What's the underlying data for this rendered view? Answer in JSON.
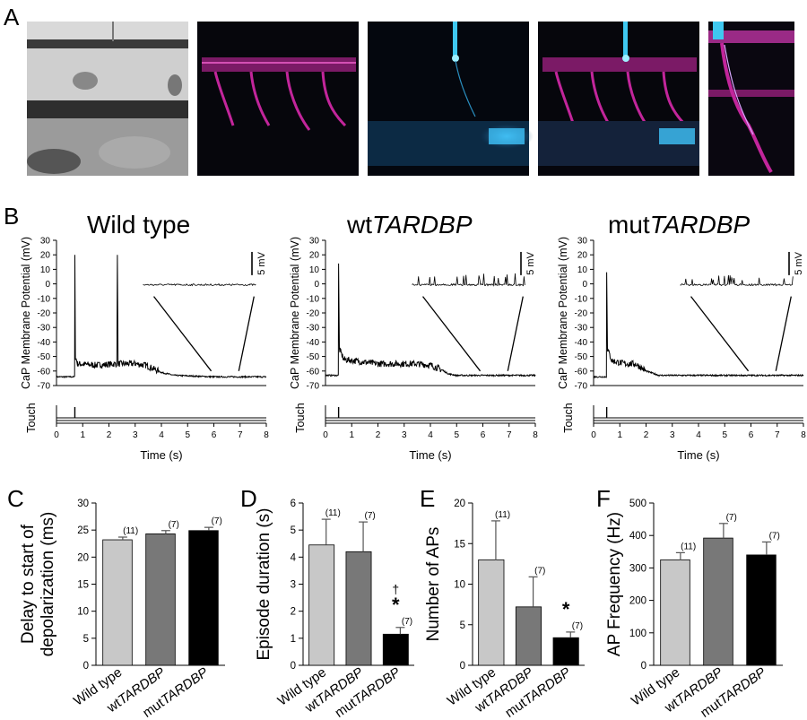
{
  "panel_letters": [
    "A",
    "B",
    "C",
    "D",
    "E",
    "F"
  ],
  "panel_a": {
    "images": [
      {
        "kind": "brightfield"
      },
      {
        "kind": "magenta-vessels"
      },
      {
        "kind": "cyan-neuron"
      },
      {
        "kind": "merge"
      },
      {
        "kind": "merge-zoom"
      }
    ],
    "colors": {
      "magenta": "#c2259b",
      "cyan": "#29b6e6",
      "dark": "#06060c"
    }
  },
  "panel_b": {
    "ylabel_trace": "CaP Membrane Potential (mV)",
    "ylabel_touch": "Touch",
    "xlabel": "Time (s)",
    "scale_bar_label": "5 mV",
    "y_ticks": [
      "30",
      "20",
      "10",
      "0",
      "-10",
      "-20",
      "-30",
      "-40",
      "-50",
      "-60",
      "-70"
    ],
    "x_ticks": [
      "0",
      "1",
      "2",
      "3",
      "4",
      "5",
      "6",
      "7",
      "8"
    ],
    "titles": [
      {
        "plain": "Wild type",
        "italic": ""
      },
      {
        "plain": "wt",
        "italic": "TARDBP"
      },
      {
        "plain": "mut",
        "italic": "TARDBP"
      }
    ]
  },
  "chart_data": [
    {
      "type": "line",
      "panel": "B",
      "title": "Wild type",
      "xlabel": "Time (s)",
      "ylabel": "CaP Membrane Potential (mV)",
      "xlim": [
        0,
        8
      ],
      "ylim": [
        -70,
        30
      ],
      "series": [
        {
          "x": [
            0,
            0.69,
            0.7,
            0.72,
            0.8,
            1.5,
            2.3,
            2.32,
            2.35,
            3.0,
            3.4,
            4.0,
            4.5,
            6.0,
            8.0
          ],
          "y": [
            -64,
            -64,
            20,
            -50,
            -55,
            -56,
            -55,
            20,
            -55,
            -55,
            -56,
            -61,
            -63,
            -64,
            -64
          ]
        }
      ],
      "touch_time": 0.7
    },
    {
      "type": "line",
      "panel": "B",
      "title": "wtTARDBP",
      "xlabel": "Time (s)",
      "ylabel": "CaP Membrane Potential (mV)",
      "xlim": [
        0,
        8
      ],
      "ylim": [
        -70,
        30
      ],
      "series": [
        {
          "x": [
            0,
            0.49,
            0.5,
            0.53,
            0.7,
            2.0,
            3.5,
            4.0,
            4.3,
            4.7,
            5.0,
            6.0,
            8.0
          ],
          "y": [
            -63,
            -63,
            14,
            -45,
            -52,
            -55,
            -55,
            -56,
            -58,
            -62,
            -63,
            -63,
            -63
          ]
        }
      ],
      "touch_time": 0.5
    },
    {
      "type": "line",
      "panel": "B",
      "title": "mutTARDBP",
      "xlabel": "Time (s)",
      "ylabel": "CaP Membrane Potential (mV)",
      "xlim": [
        0,
        8
      ],
      "ylim": [
        -70,
        30
      ],
      "series": [
        {
          "x": [
            0,
            0.49,
            0.5,
            0.53,
            0.7,
            1.2,
            1.6,
            2.0,
            2.5,
            4.0,
            8.0
          ],
          "y": [
            -64,
            -64,
            8,
            -45,
            -53,
            -55,
            -55,
            -60,
            -63,
            -63,
            -63
          ]
        }
      ],
      "touch_time": 0.5
    },
    {
      "type": "bar",
      "panel": "C",
      "ylabel": "Delay to start of depolarization (ms)",
      "categories": [
        "Wild type",
        "wtTARDBP",
        "mutTARDBP"
      ],
      "values": [
        23.2,
        24.3,
        24.9
      ],
      "errors": [
        0.5,
        0.6,
        0.6
      ],
      "n_labels": [
        "(11)",
        "(7)",
        "(7)"
      ],
      "ylim": [
        0,
        30
      ],
      "yticks": [
        "0",
        "5",
        "10",
        "15",
        "20",
        "25",
        "30"
      ],
      "sig": [
        "",
        "",
        ""
      ]
    },
    {
      "type": "bar",
      "panel": "D",
      "ylabel": "Episode duration (s)",
      "categories": [
        "Wild type",
        "wtTARDBP",
        "mutTARDBP"
      ],
      "values": [
        4.45,
        4.2,
        1.15
      ],
      "errors": [
        0.95,
        1.1,
        0.25
      ],
      "n_labels": [
        "(11)",
        "(7)",
        "(7)"
      ],
      "ylim": [
        0,
        6
      ],
      "yticks": [
        "0",
        "1",
        "2",
        "3",
        "4",
        "5",
        "6"
      ],
      "sig": [
        "",
        "",
        "†*"
      ]
    },
    {
      "type": "bar",
      "panel": "E",
      "ylabel": "Number of APs",
      "categories": [
        "Wild type",
        "wtTARDBP",
        "mutTARDBP"
      ],
      "values": [
        13,
        7.2,
        3.4
      ],
      "errors": [
        4.8,
        3.7,
        0.7
      ],
      "n_labels": [
        "(11)",
        "(7)",
        "(7)"
      ],
      "ylim": [
        0,
        20
      ],
      "yticks": [
        "0",
        "5",
        "10",
        "15",
        "20"
      ],
      "sig": [
        "",
        "",
        "*"
      ]
    },
    {
      "type": "bar",
      "panel": "F",
      "ylabel": "AP Frequency (Hz)",
      "categories": [
        "Wild type",
        "wtTARDBP",
        "mutTARDBP"
      ],
      "values": [
        325,
        392,
        340
      ],
      "errors": [
        22,
        45,
        40
      ],
      "n_labels": [
        "(11)",
        "(7)",
        "(7)"
      ],
      "ylim": [
        0,
        500
      ],
      "yticks": [
        "0",
        "100",
        "200",
        "300",
        "400",
        "500"
      ],
      "sig": [
        "",
        "",
        ""
      ]
    }
  ],
  "bar_colors": [
    "#c8c8c8",
    "#787878",
    "#000000"
  ]
}
